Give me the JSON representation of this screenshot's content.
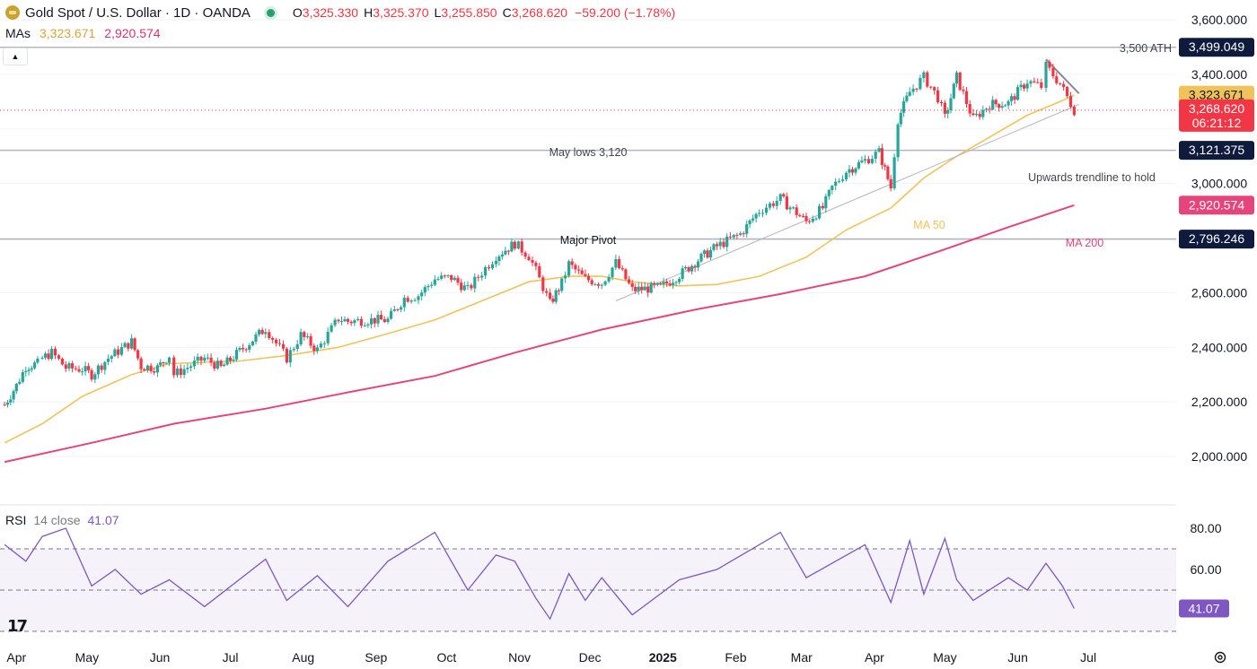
{
  "header": {
    "title": "Gold Spot / U.S. Dollar · 1D · OANDA",
    "open_label": "O",
    "open": "3,325.330",
    "high_label": "H",
    "high": "3,325.370",
    "low_label": "L",
    "low": "3,255.850",
    "close_label": "C",
    "close": "3,268.620",
    "change": "−59.200 (−1.78%)"
  },
  "mas": {
    "label": "MAs",
    "ma50": "3,323.671",
    "ma200": "2,920.574"
  },
  "rsi_header": {
    "label": "RSI",
    "params": "14 close",
    "value": "41.07"
  },
  "colors": {
    "up": "#26a69a",
    "down": "#f23645",
    "ma50": "#f0c35a",
    "ma200": "#e5457a",
    "rsi": "#7e57c2",
    "dark_tag": "#0f1b3d"
  },
  "icons": {
    "logo": "gold-coin-icon",
    "status": "market-open-dot-icon",
    "collapse": "chevron-up-icon",
    "brand": "tradingview-logo-icon",
    "settings": "gear-icon"
  },
  "chart_data": [
    {
      "type": "candlestick",
      "title": "Gold Spot / U.S. Dollar · 1D · OANDA",
      "ylim": [
        1950,
        3600
      ],
      "y_ticks": [
        "3,600.000",
        "3,400.000",
        "3,000.000",
        "2,600.000",
        "2,400.000",
        "2,200.000",
        "2,000.000"
      ],
      "y_tick_values": [
        3600,
        3400,
        3000,
        2600,
        2400,
        2200,
        2000
      ],
      "x_ticks": [
        "Apr",
        "May",
        "Jun",
        "Jul",
        "Aug",
        "Sep",
        "Oct",
        "Nov",
        "Dec",
        "2025",
        "Feb",
        "Mar",
        "Apr",
        "May",
        "Jun",
        "Jul"
      ],
      "close_series": {
        "name": "Gold Spot / U.S. Dollar",
        "x": [
          "2024-03-27",
          "2024-04-01",
          "2024-04-05",
          "2024-04-10",
          "2024-04-12",
          "2024-04-16",
          "2024-04-22",
          "2024-04-29",
          "2024-05-03",
          "2024-05-10",
          "2024-05-20",
          "2024-05-24",
          "2024-05-31",
          "2024-06-05",
          "2024-06-07",
          "2024-06-20",
          "2024-06-27",
          "2024-07-05",
          "2024-07-16",
          "2024-07-25",
          "2024-07-31",
          "2024-08-07",
          "2024-08-16",
          "2024-08-20",
          "2024-08-30",
          "2024-09-06",
          "2024-09-13",
          "2024-09-19",
          "2024-09-26",
          "2024-10-03",
          "2024-10-10",
          "2024-10-16",
          "2024-10-22",
          "2024-10-30",
          "2024-11-05",
          "2024-11-08",
          "2024-11-14",
          "2024-11-19",
          "2024-11-22",
          "2024-11-29",
          "2024-12-06",
          "2024-12-12",
          "2024-12-19",
          "2024-12-31",
          "2025-01-08",
          "2025-01-16",
          "2025-01-24",
          "2025-02-03",
          "2025-02-11",
          "2025-02-20",
          "2025-03-03",
          "2025-03-10",
          "2025-03-14",
          "2025-03-20",
          "2025-03-28",
          "2025-04-03",
          "2025-04-08",
          "2025-04-11",
          "2025-04-16",
          "2025-04-22",
          "2025-04-28",
          "2025-05-01",
          "2025-05-06",
          "2025-05-13",
          "2025-05-20",
          "2025-05-28",
          "2025-06-05",
          "2025-06-11",
          "2025-06-13",
          "2025-06-19",
          "2025-06-25"
        ],
        "values": [
          2190,
          2260,
          2330,
          2340,
          2360,
          2380,
          2325,
          2320,
          2300,
          2360,
          2420,
          2330,
          2325,
          2370,
          2300,
          2360,
          2325,
          2385,
          2470,
          2360,
          2445,
          2390,
          2505,
          2495,
          2500,
          2500,
          2580,
          2590,
          2650,
          2655,
          2610,
          2675,
          2735,
          2780,
          2735,
          2680,
          2560,
          2635,
          2705,
          2650,
          2635,
          2710,
          2610,
          2620,
          2665,
          2720,
          2770,
          2815,
          2900,
          2945,
          2860,
          2910,
          2985,
          3045,
          3085,
          3115,
          2985,
          3235,
          3335,
          3390,
          3315,
          3240,
          3390,
          3235,
          3290,
          3295,
          3375,
          3355,
          3430,
          3365,
          3269
        ]
      },
      "series": [
        {
          "name": "MA 50",
          "x": [
            "2024-03-27",
            "2024-04-12",
            "2024-04-29",
            "2024-05-20",
            "2024-06-05",
            "2024-06-20",
            "2024-07-05",
            "2024-07-25",
            "2024-08-16",
            "2024-09-06",
            "2024-09-26",
            "2024-10-16",
            "2024-11-05",
            "2024-11-22",
            "2024-12-06",
            "2024-12-19",
            "2025-01-08",
            "2025-01-24",
            "2025-02-11",
            "2025-03-03",
            "2025-03-20",
            "2025-04-08",
            "2025-04-22",
            "2025-05-06",
            "2025-05-20",
            "2025-06-05",
            "2025-06-19",
            "2025-06-25"
          ],
          "values": [
            2050,
            2120,
            2220,
            2300,
            2340,
            2345,
            2350,
            2370,
            2400,
            2450,
            2500,
            2570,
            2640,
            2660,
            2660,
            2640,
            2625,
            2630,
            2660,
            2730,
            2830,
            2910,
            3020,
            3100,
            3170,
            3250,
            3300,
            3323.671
          ]
        },
        {
          "name": "MA 200",
          "x": [
            "2024-03-27",
            "2024-05-03",
            "2024-06-07",
            "2024-07-16",
            "2024-08-20",
            "2024-09-26",
            "2024-10-30",
            "2024-12-06",
            "2025-01-16",
            "2025-02-20",
            "2025-03-28",
            "2025-04-28",
            "2025-05-28",
            "2025-06-25"
          ],
          "values": [
            1980,
            2050,
            2120,
            2175,
            2235,
            2295,
            2380,
            2465,
            2540,
            2595,
            2660,
            2750,
            2840,
            2920.574
          ]
        }
      ],
      "price_tags": [
        {
          "label": "3,499.049",
          "value": 3499.049,
          "style": "dark"
        },
        {
          "label": "3,323.671",
          "value": 3323.671,
          "style": "ma50"
        },
        {
          "label": "3,268.620",
          "sub": "06:21:12",
          "value": 3268.62,
          "style": "last"
        },
        {
          "label": "3,121.375",
          "value": 3121.375,
          "style": "dark"
        },
        {
          "label": "2,920.574",
          "value": 2920.574,
          "style": "ma200"
        },
        {
          "label": "2,796.246",
          "value": 2796.246,
          "style": "dark"
        }
      ],
      "annotations": [
        {
          "text": "3,500 ATH",
          "value": 3499.049
        },
        {
          "text": "May lows 3,120",
          "value": 3121.375
        },
        {
          "text": "Major Pivot",
          "value": 2796.246
        },
        {
          "text": "Upwards trendline to hold"
        },
        {
          "text": "MA 50"
        },
        {
          "text": "MA 200"
        }
      ],
      "trendlines": [
        {
          "name": "upward-trendline",
          "from": [
            "2024-12-12",
            2570
          ],
          "to": [
            "2025-06-27",
            3290
          ]
        },
        {
          "name": "downward-trendline",
          "from": [
            "2025-06-13",
            3455
          ],
          "to": [
            "2025-06-27",
            3330
          ]
        }
      ],
      "legend": "top-left",
      "grid": true
    },
    {
      "type": "line",
      "title": "RSI 14 close",
      "ylim": [
        30,
        85
      ],
      "y_ticks": [
        "80.00",
        "60.00"
      ],
      "y_tick_values": [
        80,
        60
      ],
      "bands": [
        70,
        50,
        30
      ],
      "series": [
        {
          "name": "RSI",
          "x": [
            "2024-03-27",
            "2024-04-05",
            "2024-04-12",
            "2024-04-22",
            "2024-05-03",
            "2024-05-13",
            "2024-05-24",
            "2024-06-05",
            "2024-06-20",
            "2024-07-16",
            "2024-07-25",
            "2024-08-07",
            "2024-08-20",
            "2024-09-06",
            "2024-09-26",
            "2024-10-10",
            "2024-10-22",
            "2024-10-30",
            "2024-11-08",
            "2024-11-14",
            "2024-11-22",
            "2024-11-29",
            "2024-12-06",
            "2024-12-19",
            "2025-01-08",
            "2025-01-24",
            "2025-02-11",
            "2025-02-20",
            "2025-03-03",
            "2025-03-14",
            "2025-03-28",
            "2025-04-08",
            "2025-04-16",
            "2025-04-22",
            "2025-05-01",
            "2025-05-06",
            "2025-05-13",
            "2025-05-28",
            "2025-06-05",
            "2025-06-13",
            "2025-06-20",
            "2025-06-25"
          ],
          "values": [
            72,
            64,
            76,
            80,
            52,
            60,
            48,
            55,
            42,
            65,
            45,
            57,
            42,
            64,
            78,
            50,
            67,
            64,
            46,
            36,
            58,
            45,
            56,
            38,
            55,
            60,
            72,
            78,
            56,
            63,
            72,
            44,
            74,
            48,
            75,
            55,
            45,
            56,
            50,
            63,
            52,
            41.07
          ]
        }
      ]
    }
  ]
}
